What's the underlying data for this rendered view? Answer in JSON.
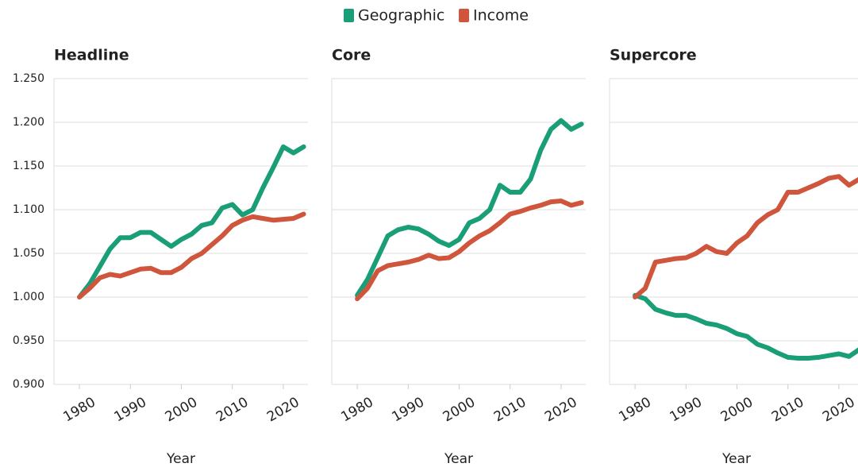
{
  "legend": [
    {
      "name": "Geographic",
      "color": "#1a9e77"
    },
    {
      "name": "Income",
      "color": "#cf553c"
    }
  ],
  "chart_data": [
    {
      "type": "line",
      "title": "Headline",
      "x_label": "Year",
      "x": [
        1980,
        1982,
        1984,
        1986,
        1988,
        1990,
        1992,
        1994,
        1996,
        1998,
        2000,
        2002,
        2004,
        2006,
        2008,
        2010,
        2012,
        2014,
        2016,
        2018,
        2020,
        2022,
        2024
      ],
      "xlim": [
        1975,
        2025
      ],
      "xticks": [
        1980,
        1990,
        2000,
        2010,
        2020
      ],
      "ylim": [
        0.9,
        1.25
      ],
      "yticks": [
        {
          "value": 0.9,
          "label": "0.900"
        },
        {
          "value": 0.95,
          "label": "0.950"
        },
        {
          "value": 1.0,
          "label": "1.000"
        },
        {
          "value": 1.05,
          "label": "1.050"
        },
        {
          "value": 1.1,
          "label": "1.100"
        },
        {
          "value": 1.15,
          "label": "1.150"
        },
        {
          "value": 1.2,
          "label": "1.200"
        },
        {
          "value": 1.25,
          "label": "1.250"
        }
      ],
      "grid": true,
      "show_yticklabels": true,
      "series": [
        {
          "values": [
            1.0,
            1.015,
            1.035,
            1.055,
            1.068,
            1.068,
            1.074,
            1.074,
            1.066,
            1.058,
            1.066,
            1.072,
            1.082,
            1.085,
            1.102,
            1.106,
            1.094,
            1.1,
            1.125,
            1.148,
            1.172,
            1.165,
            1.172
          ]
        },
        {
          "values": [
            1.0,
            1.01,
            1.022,
            1.026,
            1.024,
            1.028,
            1.032,
            1.033,
            1.028,
            1.028,
            1.034,
            1.044,
            1.05,
            1.06,
            1.07,
            1.082,
            1.088,
            1.092,
            1.09,
            1.088,
            1.089,
            1.09,
            1.095
          ]
        }
      ]
    },
    {
      "type": "line",
      "title": "Core",
      "x_label": "Year",
      "x": [
        1980,
        1982,
        1984,
        1986,
        1988,
        1990,
        1992,
        1994,
        1996,
        1998,
        2000,
        2002,
        2004,
        2006,
        2008,
        2010,
        2012,
        2014,
        2016,
        2018,
        2020,
        2022,
        2024
      ],
      "xlim": [
        1975,
        2025
      ],
      "xticks": [
        1980,
        1990,
        2000,
        2010,
        2020
      ],
      "ylim": [
        0.9,
        1.25
      ],
      "yticks": [
        0.9,
        0.95,
        1.0,
        1.05,
        1.1,
        1.15,
        1.2,
        1.25
      ],
      "grid": true,
      "show_yticklabels": false,
      "series": [
        {
          "values": [
            1.002,
            1.02,
            1.045,
            1.07,
            1.077,
            1.08,
            1.078,
            1.072,
            1.064,
            1.059,
            1.066,
            1.085,
            1.09,
            1.1,
            1.128,
            1.12,
            1.12,
            1.135,
            1.168,
            1.192,
            1.202,
            1.192,
            1.198
          ]
        },
        {
          "values": [
            0.998,
            1.01,
            1.03,
            1.036,
            1.038,
            1.04,
            1.043,
            1.048,
            1.044,
            1.045,
            1.052,
            1.062,
            1.07,
            1.076,
            1.085,
            1.095,
            1.098,
            1.102,
            1.105,
            1.109,
            1.11,
            1.105,
            1.108
          ]
        }
      ]
    },
    {
      "type": "line",
      "title": "Supercore",
      "x_label": "Year",
      "x": [
        1980,
        1982,
        1984,
        1986,
        1988,
        1990,
        1992,
        1994,
        1996,
        1998,
        2000,
        2002,
        2004,
        2006,
        2008,
        2010,
        2012,
        2014,
        2016,
        2018,
        2020,
        2022,
        2024
      ],
      "xlim": [
        1975,
        2025
      ],
      "xticks": [
        1980,
        1990,
        2000,
        2010,
        2020
      ],
      "ylim": [
        0.9,
        1.25
      ],
      "yticks": [
        0.9,
        0.95,
        1.0,
        1.05,
        1.1,
        1.15,
        1.2,
        1.25
      ],
      "grid": true,
      "show_yticklabels": false,
      "series": [
        {
          "values": [
            1.002,
            0.998,
            0.986,
            0.982,
            0.979,
            0.979,
            0.975,
            0.97,
            0.968,
            0.964,
            0.958,
            0.955,
            0.946,
            0.942,
            0.936,
            0.931,
            0.93,
            0.93,
            0.931,
            0.933,
            0.935,
            0.932,
            0.94
          ]
        },
        {
          "values": [
            1.0,
            1.01,
            1.04,
            1.042,
            1.044,
            1.045,
            1.05,
            1.058,
            1.052,
            1.05,
            1.062,
            1.07,
            1.085,
            1.094,
            1.1,
            1.12,
            1.12,
            1.125,
            1.13,
            1.136,
            1.138,
            1.128,
            1.135
          ]
        }
      ]
    }
  ]
}
